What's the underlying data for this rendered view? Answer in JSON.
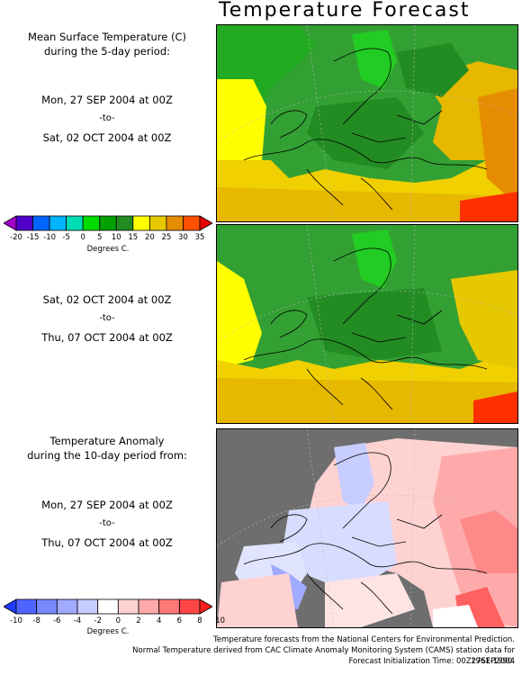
{
  "title": "Temperature Forecast",
  "panel1": {
    "heading_line1": "Mean Surface Temperature (C)",
    "heading_line2": "during the 5-day period:",
    "start": "Mon, 27 SEP 2004 at 00Z",
    "to": "-to-",
    "end": "Sat, 02 OCT 2004 at 00Z"
  },
  "panel2": {
    "start": "Sat, 02 OCT 2004 at 00Z",
    "to": "-to-",
    "end": "Thu, 07 OCT 2004 at 00Z"
  },
  "panel3": {
    "heading_line1": "Temperature Anomaly",
    "heading_line2": "during the 10-day period from:",
    "start": "Mon, 27 SEP 2004 at 00Z",
    "to": "-to-",
    "end": "Thu, 07 OCT 2004 at 00Z"
  },
  "temp_scale": {
    "ticks": [
      "-20",
      "-15",
      "-10",
      "-5",
      "0",
      "5",
      "10",
      "15",
      "20",
      "25",
      "30",
      "35"
    ],
    "colors": [
      "#a000c8",
      "#5000c8",
      "#0064ff",
      "#00b4ff",
      "#00dcb4",
      "#00dc00",
      "#00a000",
      "#228b22",
      "#ffff00",
      "#e6c800",
      "#e68c00",
      "#ff5000",
      "#e60000"
    ],
    "unit": "Degrees C."
  },
  "anomaly_scale": {
    "ticks": [
      "-10",
      "-8",
      "-6",
      "-4",
      "-2",
      "0",
      "2",
      "4",
      "6",
      "8",
      "10"
    ],
    "colors": [
      "#1e3cff",
      "#5064ff",
      "#7888ff",
      "#a0aaff",
      "#c8cdff",
      "#ffffff",
      "#ffd2d2",
      "#ffaaaa",
      "#ff7878",
      "#ff4646",
      "#ff1e1e"
    ],
    "unit": "Degrees C."
  },
  "credits": {
    "line1": "Temperature forecasts from the National Centers for Environmental Prediction.",
    "line2": "Normal Temperature derived from CAC Climate Anomaly Monitoring System (CAMS) station data for 1961-1990.",
    "line3": "Forecast Initialization Time: 00Z27SEP2004"
  }
}
